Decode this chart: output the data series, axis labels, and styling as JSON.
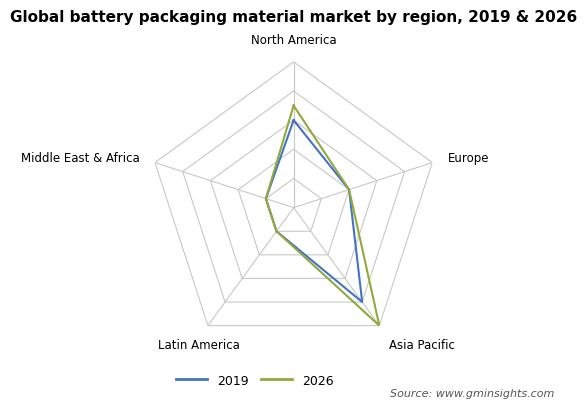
{
  "title": "Global battery packaging material market by region, 2019 & 2026",
  "categories": [
    "North America",
    "Europe",
    "Asia Pacific",
    "Latin America",
    "Middle East & Africa"
  ],
  "series": [
    {
      "label": "2019",
      "values": [
        3,
        2,
        4,
        1,
        1
      ],
      "color": "#4472C4"
    },
    {
      "label": "2026",
      "values": [
        3.5,
        2,
        5,
        1,
        1
      ],
      "color": "#8faa3b"
    }
  ],
  "max_value": 5,
  "num_rings": 5,
  "grid_color": "#c8c8c8",
  "background_color": "#ffffff",
  "title_fontsize": 11,
  "label_fontsize": 8.5,
  "legend_fontsize": 9,
  "source_text": "Source: www.gminsights.com"
}
